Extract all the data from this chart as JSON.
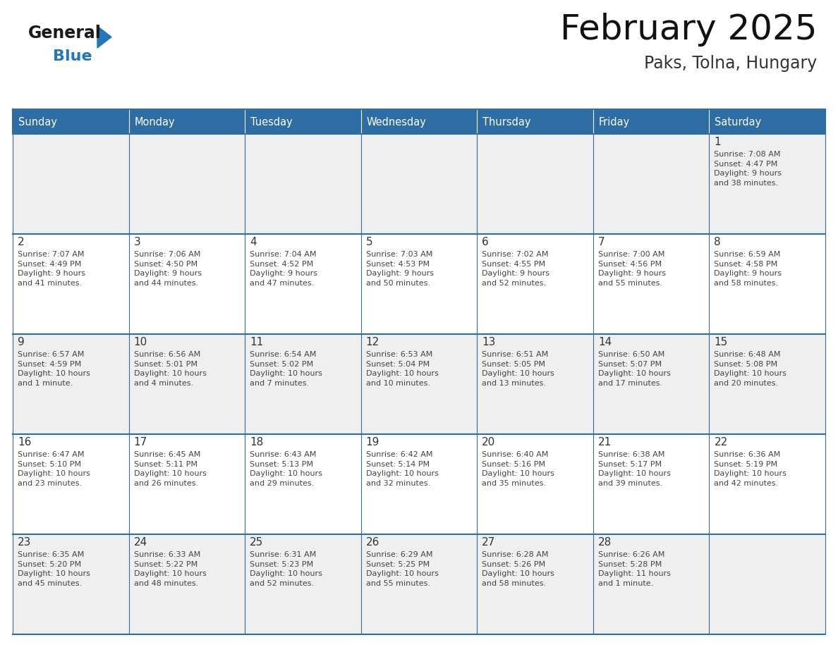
{
  "title": "February 2025",
  "subtitle": "Paks, Tolna, Hungary",
  "days_of_week": [
    "Sunday",
    "Monday",
    "Tuesday",
    "Wednesday",
    "Thursday",
    "Friday",
    "Saturday"
  ],
  "header_bg": "#2E6DA4",
  "header_text": "#FFFFFF",
  "cell_bg_light": "#EFEFEF",
  "cell_bg_white": "#FFFFFF",
  "border_color": "#2E6DA4",
  "text_color": "#444444",
  "day_num_color": "#333333",
  "logo_general_color": "#1a1a1a",
  "logo_blue_color": "#2277BB",
  "calendar": [
    [
      null,
      null,
      null,
      null,
      null,
      null,
      {
        "day": "1",
        "sunrise": "7:08 AM",
        "sunset": "4:47 PM",
        "daylight": "9 hours\nand 38 minutes."
      }
    ],
    [
      {
        "day": "2",
        "sunrise": "7:07 AM",
        "sunset": "4:49 PM",
        "daylight": "9 hours\nand 41 minutes."
      },
      {
        "day": "3",
        "sunrise": "7:06 AM",
        "sunset": "4:50 PM",
        "daylight": "9 hours\nand 44 minutes."
      },
      {
        "day": "4",
        "sunrise": "7:04 AM",
        "sunset": "4:52 PM",
        "daylight": "9 hours\nand 47 minutes."
      },
      {
        "day": "5",
        "sunrise": "7:03 AM",
        "sunset": "4:53 PM",
        "daylight": "9 hours\nand 50 minutes."
      },
      {
        "day": "6",
        "sunrise": "7:02 AM",
        "sunset": "4:55 PM",
        "daylight": "9 hours\nand 52 minutes."
      },
      {
        "day": "7",
        "sunrise": "7:00 AM",
        "sunset": "4:56 PM",
        "daylight": "9 hours\nand 55 minutes."
      },
      {
        "day": "8",
        "sunrise": "6:59 AM",
        "sunset": "4:58 PM",
        "daylight": "9 hours\nand 58 minutes."
      }
    ],
    [
      {
        "day": "9",
        "sunrise": "6:57 AM",
        "sunset": "4:59 PM",
        "daylight": "10 hours\nand 1 minute."
      },
      {
        "day": "10",
        "sunrise": "6:56 AM",
        "sunset": "5:01 PM",
        "daylight": "10 hours\nand 4 minutes."
      },
      {
        "day": "11",
        "sunrise": "6:54 AM",
        "sunset": "5:02 PM",
        "daylight": "10 hours\nand 7 minutes."
      },
      {
        "day": "12",
        "sunrise": "6:53 AM",
        "sunset": "5:04 PM",
        "daylight": "10 hours\nand 10 minutes."
      },
      {
        "day": "13",
        "sunrise": "6:51 AM",
        "sunset": "5:05 PM",
        "daylight": "10 hours\nand 13 minutes."
      },
      {
        "day": "14",
        "sunrise": "6:50 AM",
        "sunset": "5:07 PM",
        "daylight": "10 hours\nand 17 minutes."
      },
      {
        "day": "15",
        "sunrise": "6:48 AM",
        "sunset": "5:08 PM",
        "daylight": "10 hours\nand 20 minutes."
      }
    ],
    [
      {
        "day": "16",
        "sunrise": "6:47 AM",
        "sunset": "5:10 PM",
        "daylight": "10 hours\nand 23 minutes."
      },
      {
        "day": "17",
        "sunrise": "6:45 AM",
        "sunset": "5:11 PM",
        "daylight": "10 hours\nand 26 minutes."
      },
      {
        "day": "18",
        "sunrise": "6:43 AM",
        "sunset": "5:13 PM",
        "daylight": "10 hours\nand 29 minutes."
      },
      {
        "day": "19",
        "sunrise": "6:42 AM",
        "sunset": "5:14 PM",
        "daylight": "10 hours\nand 32 minutes."
      },
      {
        "day": "20",
        "sunrise": "6:40 AM",
        "sunset": "5:16 PM",
        "daylight": "10 hours\nand 35 minutes."
      },
      {
        "day": "21",
        "sunrise": "6:38 AM",
        "sunset": "5:17 PM",
        "daylight": "10 hours\nand 39 minutes."
      },
      {
        "day": "22",
        "sunrise": "6:36 AM",
        "sunset": "5:19 PM",
        "daylight": "10 hours\nand 42 minutes."
      }
    ],
    [
      {
        "day": "23",
        "sunrise": "6:35 AM",
        "sunset": "5:20 PM",
        "daylight": "10 hours\nand 45 minutes."
      },
      {
        "day": "24",
        "sunrise": "6:33 AM",
        "sunset": "5:22 PM",
        "daylight": "10 hours\nand 48 minutes."
      },
      {
        "day": "25",
        "sunrise": "6:31 AM",
        "sunset": "5:23 PM",
        "daylight": "10 hours\nand 52 minutes."
      },
      {
        "day": "26",
        "sunrise": "6:29 AM",
        "sunset": "5:25 PM",
        "daylight": "10 hours\nand 55 minutes."
      },
      {
        "day": "27",
        "sunrise": "6:28 AM",
        "sunset": "5:26 PM",
        "daylight": "10 hours\nand 58 minutes."
      },
      {
        "day": "28",
        "sunrise": "6:26 AM",
        "sunset": "5:28 PM",
        "daylight": "11 hours\nand 1 minute."
      },
      null
    ]
  ],
  "fig_width": 11.88,
  "fig_height": 9.18,
  "dpi": 100
}
